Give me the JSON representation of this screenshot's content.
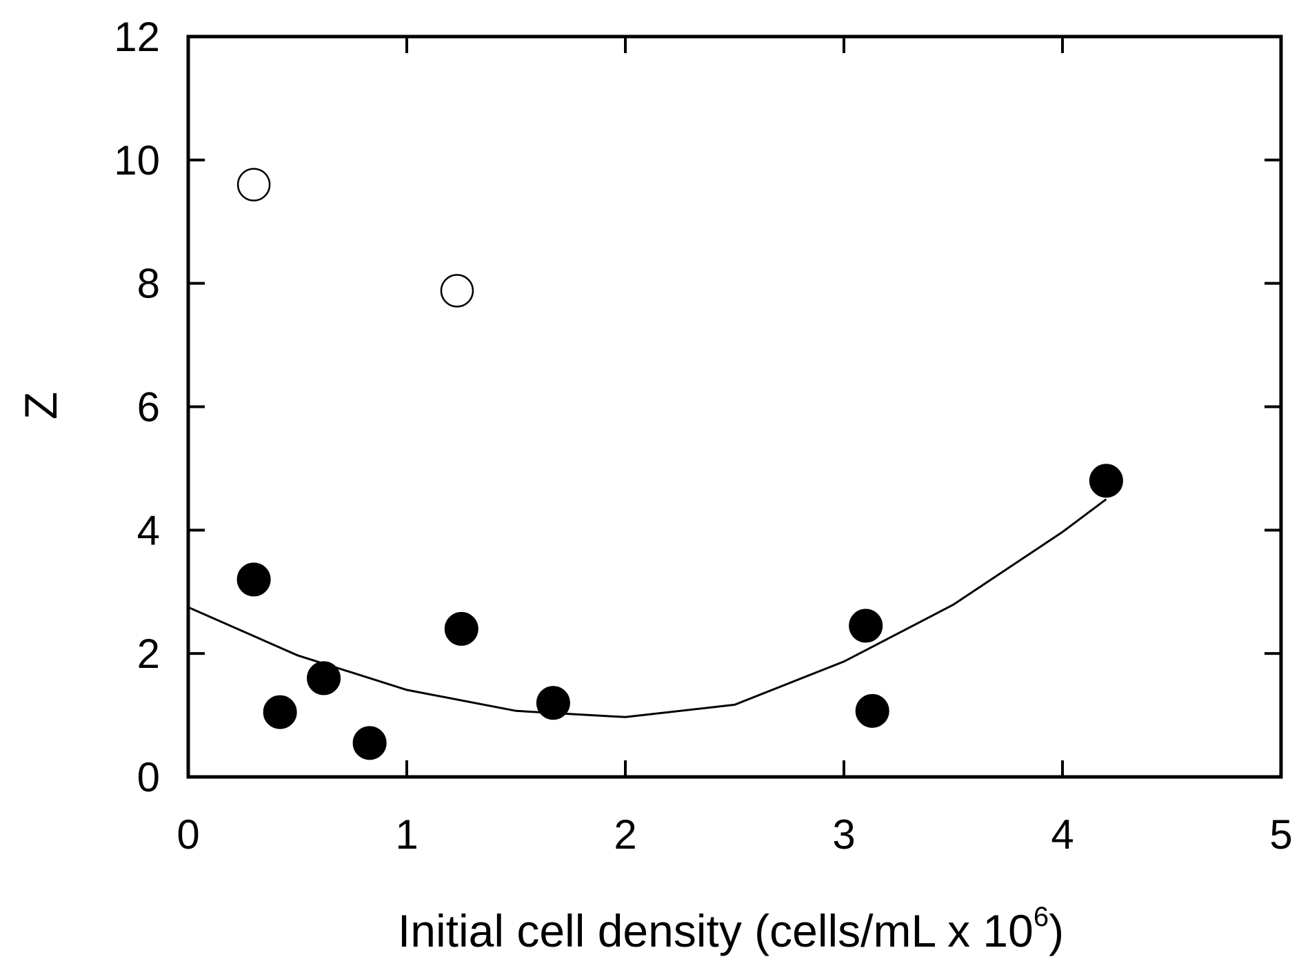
{
  "chart_data": {
    "type": "scatter",
    "title": "",
    "xlabel": "Initial cell density (cells/mL x 10",
    "xlabel_superscript": "6",
    "xlabel_suffix": ")",
    "ylabel": "Z",
    "xlim": [
      0,
      5
    ],
    "ylim": [
      0,
      12
    ],
    "xticks": [
      0,
      1,
      2,
      3,
      4,
      5
    ],
    "yticks": [
      0,
      2,
      4,
      6,
      8,
      10,
      12
    ],
    "xtick_labels": [
      "0",
      "1",
      "2",
      "3",
      "4",
      "5"
    ],
    "ytick_labels": [
      "0",
      "2",
      "4",
      "6",
      "8",
      "10",
      "12"
    ],
    "grid": false,
    "series": [
      {
        "name": "filled",
        "marker": "filled-circle",
        "color": "#000000",
        "points": [
          {
            "x": 0.3,
            "y": 3.2
          },
          {
            "x": 0.42,
            "y": 1.05
          },
          {
            "x": 0.62,
            "y": 1.6
          },
          {
            "x": 0.83,
            "y": 0.55
          },
          {
            "x": 1.25,
            "y": 2.4
          },
          {
            "x": 1.67,
            "y": 1.2
          },
          {
            "x": 3.1,
            "y": 2.45
          },
          {
            "x": 3.13,
            "y": 1.07
          },
          {
            "x": 4.2,
            "y": 4.8
          }
        ]
      },
      {
        "name": "open",
        "marker": "open-circle",
        "color": "#000000",
        "points": [
          {
            "x": 0.3,
            "y": 9.6
          },
          {
            "x": 1.23,
            "y": 7.88
          }
        ]
      }
    ],
    "fit_curve": {
      "name": "quadratic fit",
      "type": "line",
      "color": "#000000",
      "x": [
        0,
        0.5,
        1,
        1.5,
        2,
        2.5,
        3,
        3.5,
        4,
        4.2
      ],
      "y": [
        2.75,
        1.97,
        1.41,
        1.07,
        0.97,
        1.17,
        1.87,
        2.79,
        3.97,
        4.5
      ]
    }
  }
}
